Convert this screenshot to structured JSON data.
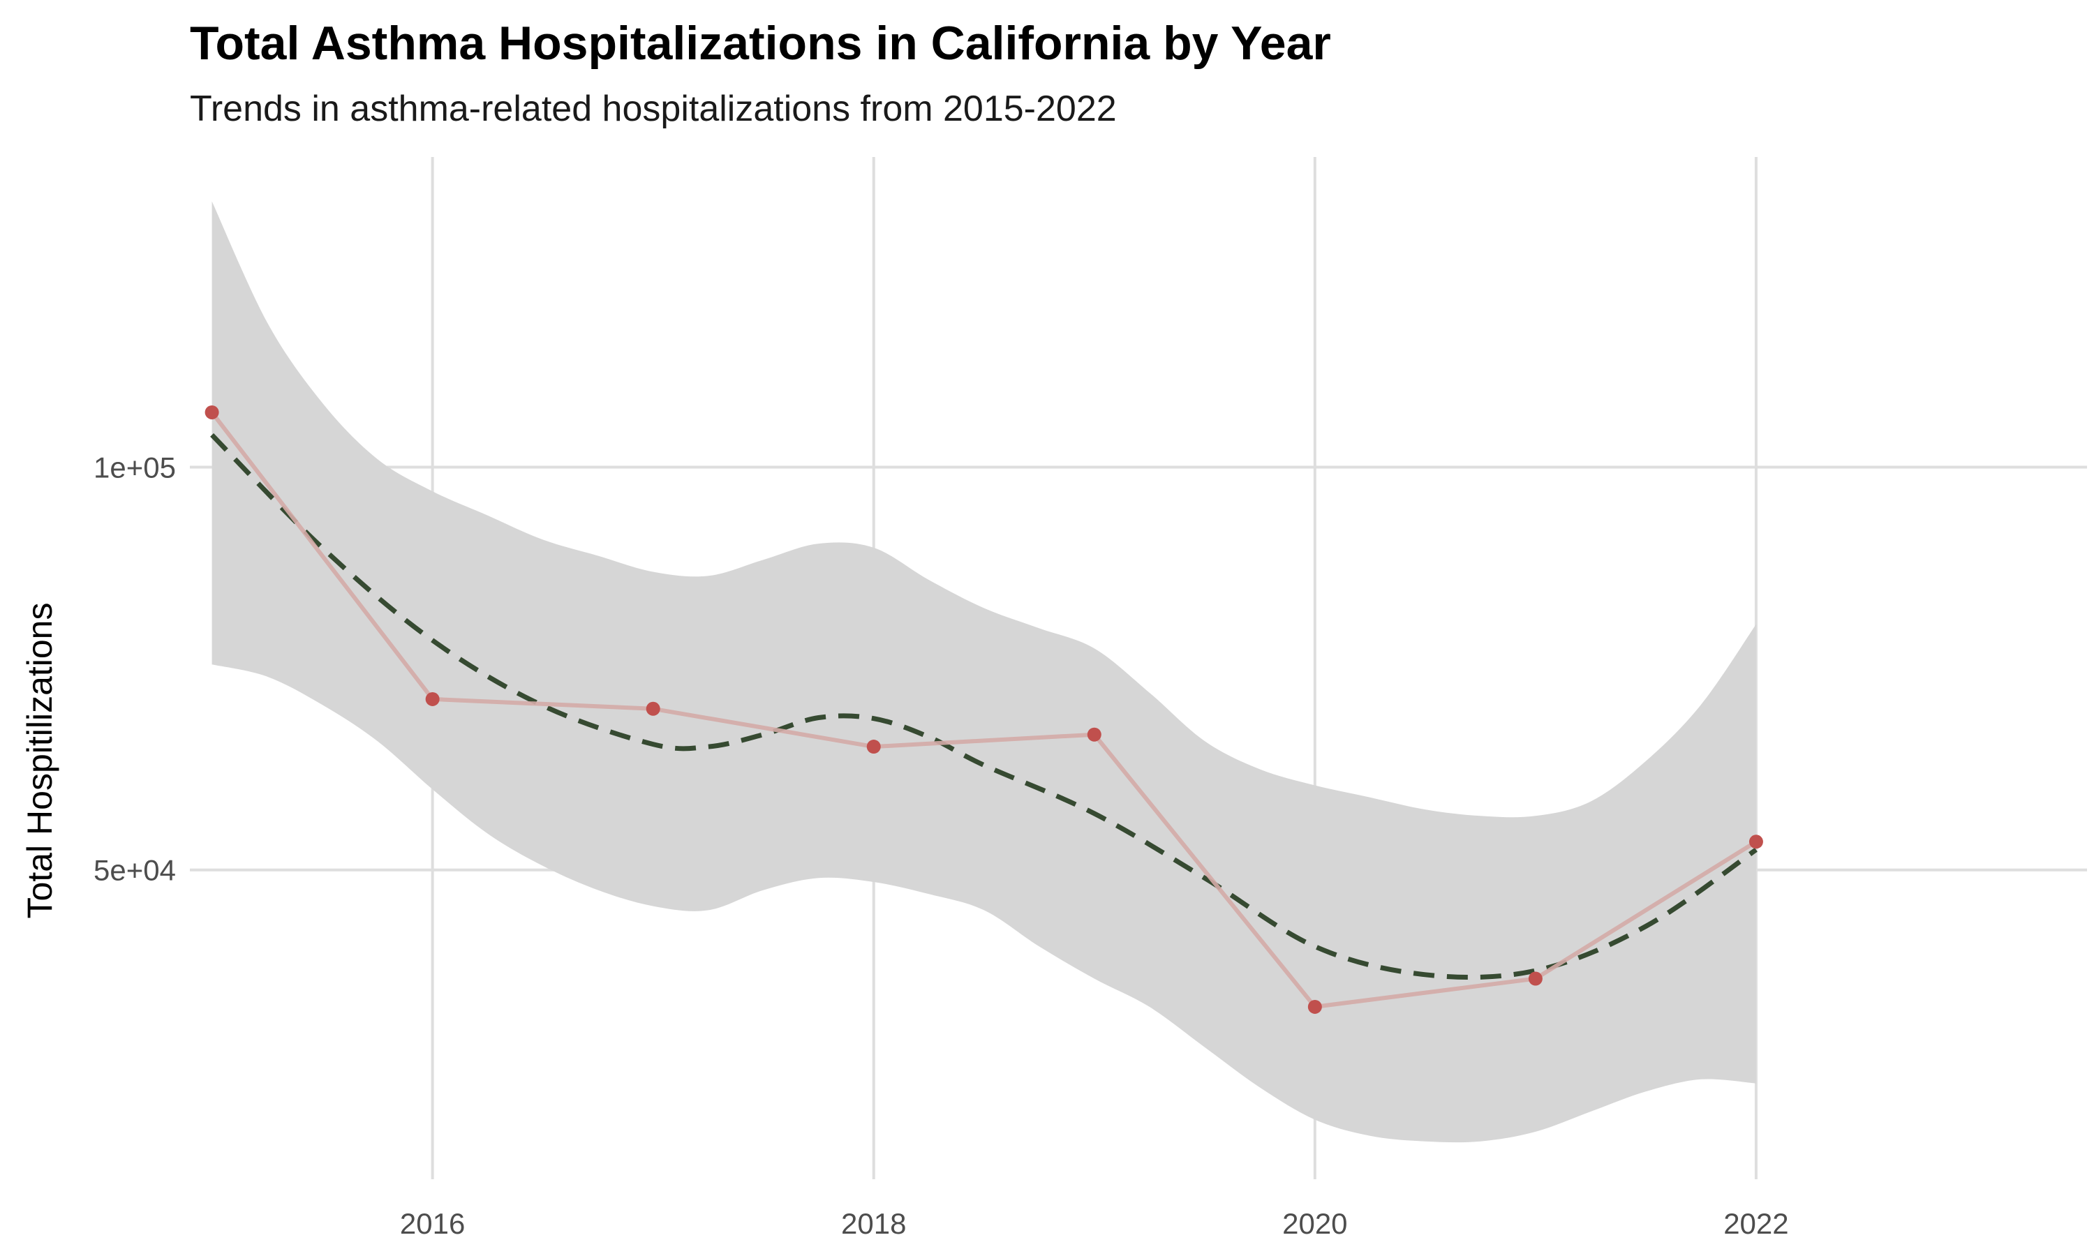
{
  "chart_data": {
    "type": "line",
    "title": "Total Asthma Hospitalizations in California by Year",
    "subtitle": "Trends in asthma-related hospitalizations from 2015-2022",
    "xlabel": "",
    "ylabel": "Total Hospitilizations",
    "x": [
      2015,
      2016,
      2017,
      2018,
      2019,
      2020,
      2021,
      2022
    ],
    "series": [
      {
        "values": [
          106800,
          71200,
          70000,
          65300,
          66800,
          33000,
          36500,
          53500
        ],
        "color": "#d4aba7",
        "marker_color": "#c0504d"
      }
    ],
    "smooth_trend": {
      "style": "dashed",
      "color": "#364a31",
      "x": [
        2015,
        2015.5,
        2016,
        2016.5,
        2017,
        2017.25,
        2017.5,
        2017.75,
        2018,
        2018.25,
        2018.5,
        2019,
        2019.5,
        2020,
        2020.5,
        2021,
        2021.5,
        2022
      ],
      "y": [
        104000,
        90000,
        78500,
        70400,
        65600,
        65300,
        66800,
        68900,
        68800,
        66500,
        63000,
        57000,
        49000,
        40500,
        37000,
        37500,
        43000,
        52500
      ]
    },
    "confidence_band": {
      "color": "#d6d6d6",
      "x": [
        2015,
        2015.25,
        2015.5,
        2015.75,
        2016,
        2016.25,
        2016.5,
        2016.75,
        2017,
        2017.25,
        2017.5,
        2017.75,
        2018,
        2018.25,
        2018.5,
        2018.75,
        2019,
        2019.25,
        2019.5,
        2019.75,
        2020,
        2020.25,
        2020.5,
        2020.75,
        2021,
        2021.25,
        2021.5,
        2021.75,
        2022
      ],
      "upper": [
        133000,
        118000,
        108000,
        101000,
        97000,
        94000,
        91000,
        89000,
        87000,
        86500,
        88500,
        90500,
        90000,
        86000,
        82500,
        80000,
        77500,
        72000,
        66000,
        62500,
        60500,
        59000,
        57500,
        56700,
        56700,
        58500,
        63500,
        70500,
        80500
      ],
      "lower": [
        75500,
        74000,
        70500,
        66000,
        60000,
        54500,
        50500,
        47500,
        45500,
        45000,
        47500,
        49000,
        48500,
        47000,
        45000,
        40500,
        36500,
        33000,
        28000,
        23000,
        19000,
        17000,
        16300,
        16300,
        17500,
        20000,
        22500,
        24000,
        23500
      ]
    },
    "xticks": [
      2016,
      2018,
      2020,
      2022
    ],
    "xtick_labels": [
      "2016",
      "2018",
      "2020",
      "2022"
    ],
    "yticks": [
      50000,
      100000
    ],
    "ytick_labels": [
      "5e+04",
      "1e+05"
    ],
    "xlim": [
      2014.9,
      2023.5
    ],
    "ylim": [
      11600,
      138500
    ],
    "grid": true,
    "legend": "none"
  }
}
